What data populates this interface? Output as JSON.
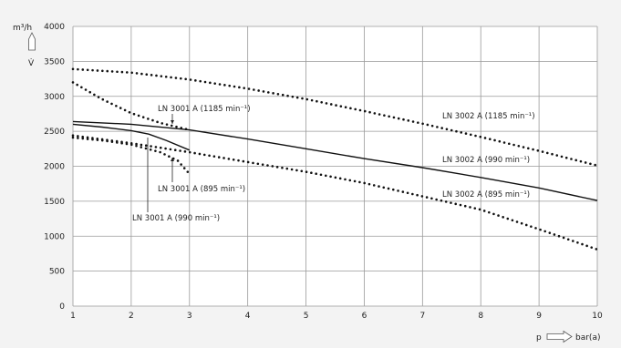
{
  "chart_data": {
    "type": "line",
    "xlabel_prefix": "p",
    "xlabel_unit": "bar(a)",
    "ylabel_unit": "m³/h",
    "ylabel_symbol": "V̇",
    "xlim": [
      1,
      10
    ],
    "ylim": [
      0,
      4000
    ],
    "x_ticks": [
      1,
      2,
      3,
      4,
      5,
      6,
      7,
      8,
      9,
      10
    ],
    "y_ticks": [
      0,
      500,
      1000,
      1500,
      2000,
      2500,
      3000,
      3500,
      4000
    ],
    "grid": true,
    "series": [
      {
        "name": "LN 3002 A (1185 min⁻¹)",
        "style": "dotted",
        "x": [
          1,
          2,
          3,
          4,
          5,
          6,
          7,
          8,
          9,
          10
        ],
        "y": [
          3390,
          3340,
          3240,
          3110,
          2960,
          2790,
          2610,
          2420,
          2220,
          2010
        ]
      },
      {
        "name": "LN 3002 A (990 min⁻¹)",
        "style": "solid",
        "x": [
          1,
          2,
          3,
          4,
          5,
          6,
          7,
          8,
          9,
          10
        ],
        "y": [
          2640,
          2600,
          2520,
          2390,
          2250,
          2110,
          1980,
          1840,
          1690,
          1510
        ]
      },
      {
        "name": "LN 3002 A (895 min⁻¹)",
        "style": "dotted",
        "x": [
          1,
          2,
          3,
          4,
          5,
          6,
          7,
          8,
          9,
          10
        ],
        "y": [
          2440,
          2330,
          2200,
          2060,
          1920,
          1760,
          1570,
          1380,
          1100,
          810
        ]
      },
      {
        "name": "LN 3001 A (1185 min⁻¹)",
        "style": "dotted",
        "x": [
          1,
          1.5,
          2,
          2.5,
          3
        ],
        "y": [
          3200,
          2960,
          2760,
          2620,
          2520
        ]
      },
      {
        "name": "LN 3001 A (990 min⁻¹)",
        "style": "solid",
        "x": [
          1,
          1.5,
          2,
          2.3,
          2.6,
          3
        ],
        "y": [
          2600,
          2560,
          2510,
          2460,
          2370,
          2230
        ]
      },
      {
        "name": "LN 3001 A (895 min⁻¹)",
        "style": "dotted",
        "x": [
          1,
          1.5,
          2,
          2.5,
          2.8,
          3
        ],
        "y": [
          2410,
          2370,
          2310,
          2200,
          2080,
          1890
        ]
      }
    ]
  }
}
